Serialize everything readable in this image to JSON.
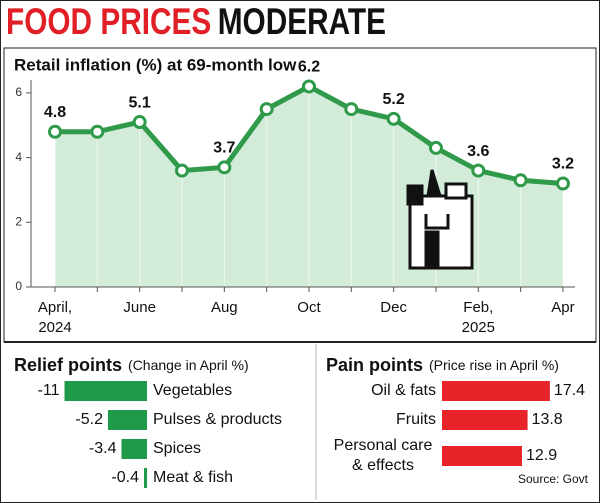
{
  "headline": {
    "highlight": "FOOD PRICES",
    "rest": "MODERATE"
  },
  "chart_data": [
    {
      "type": "line",
      "title": "Retail inflation (%) at 69-month low",
      "categories": [
        "April, 2024",
        null,
        "June",
        null,
        "Aug",
        null,
        "Oct",
        null,
        "Dec",
        null,
        "Feb, 2025",
        null,
        "Apr"
      ],
      "values": [
        4.8,
        4.8,
        5.1,
        3.6,
        3.7,
        5.5,
        6.2,
        5.5,
        5.2,
        4.3,
        3.6,
        3.3,
        3.2
      ],
      "value_labels": [
        "4.8",
        null,
        "5.1",
        null,
        "3.7",
        null,
        "6.2",
        null,
        "5.2",
        null,
        "3.6",
        null,
        "3.2"
      ],
      "color": "#2e9a4a",
      "fill": "#d3ecd9",
      "ylim": [
        0,
        6.4
      ],
      "yticks": [
        0,
        2,
        4,
        6
      ]
    },
    {
      "type": "hbar",
      "title": "Relief points",
      "subtitle": "(Change in April %)",
      "categories": [
        "Vegetables",
        "Pulses & products",
        "Spices",
        "Meat & fish"
      ],
      "values": [
        -11,
        -5.2,
        -3.4,
        -0.4
      ],
      "color": "#1f9a48"
    },
    {
      "type": "hbar",
      "title": "Pain points",
      "subtitle": "(Price rise in April %)",
      "categories": [
        "Oil & fats",
        "Fruits",
        "Personal care & effects"
      ],
      "values": [
        17.4,
        13.8,
        12.9
      ],
      "color": "#e8232a"
    }
  ],
  "source": "Source: Govt"
}
